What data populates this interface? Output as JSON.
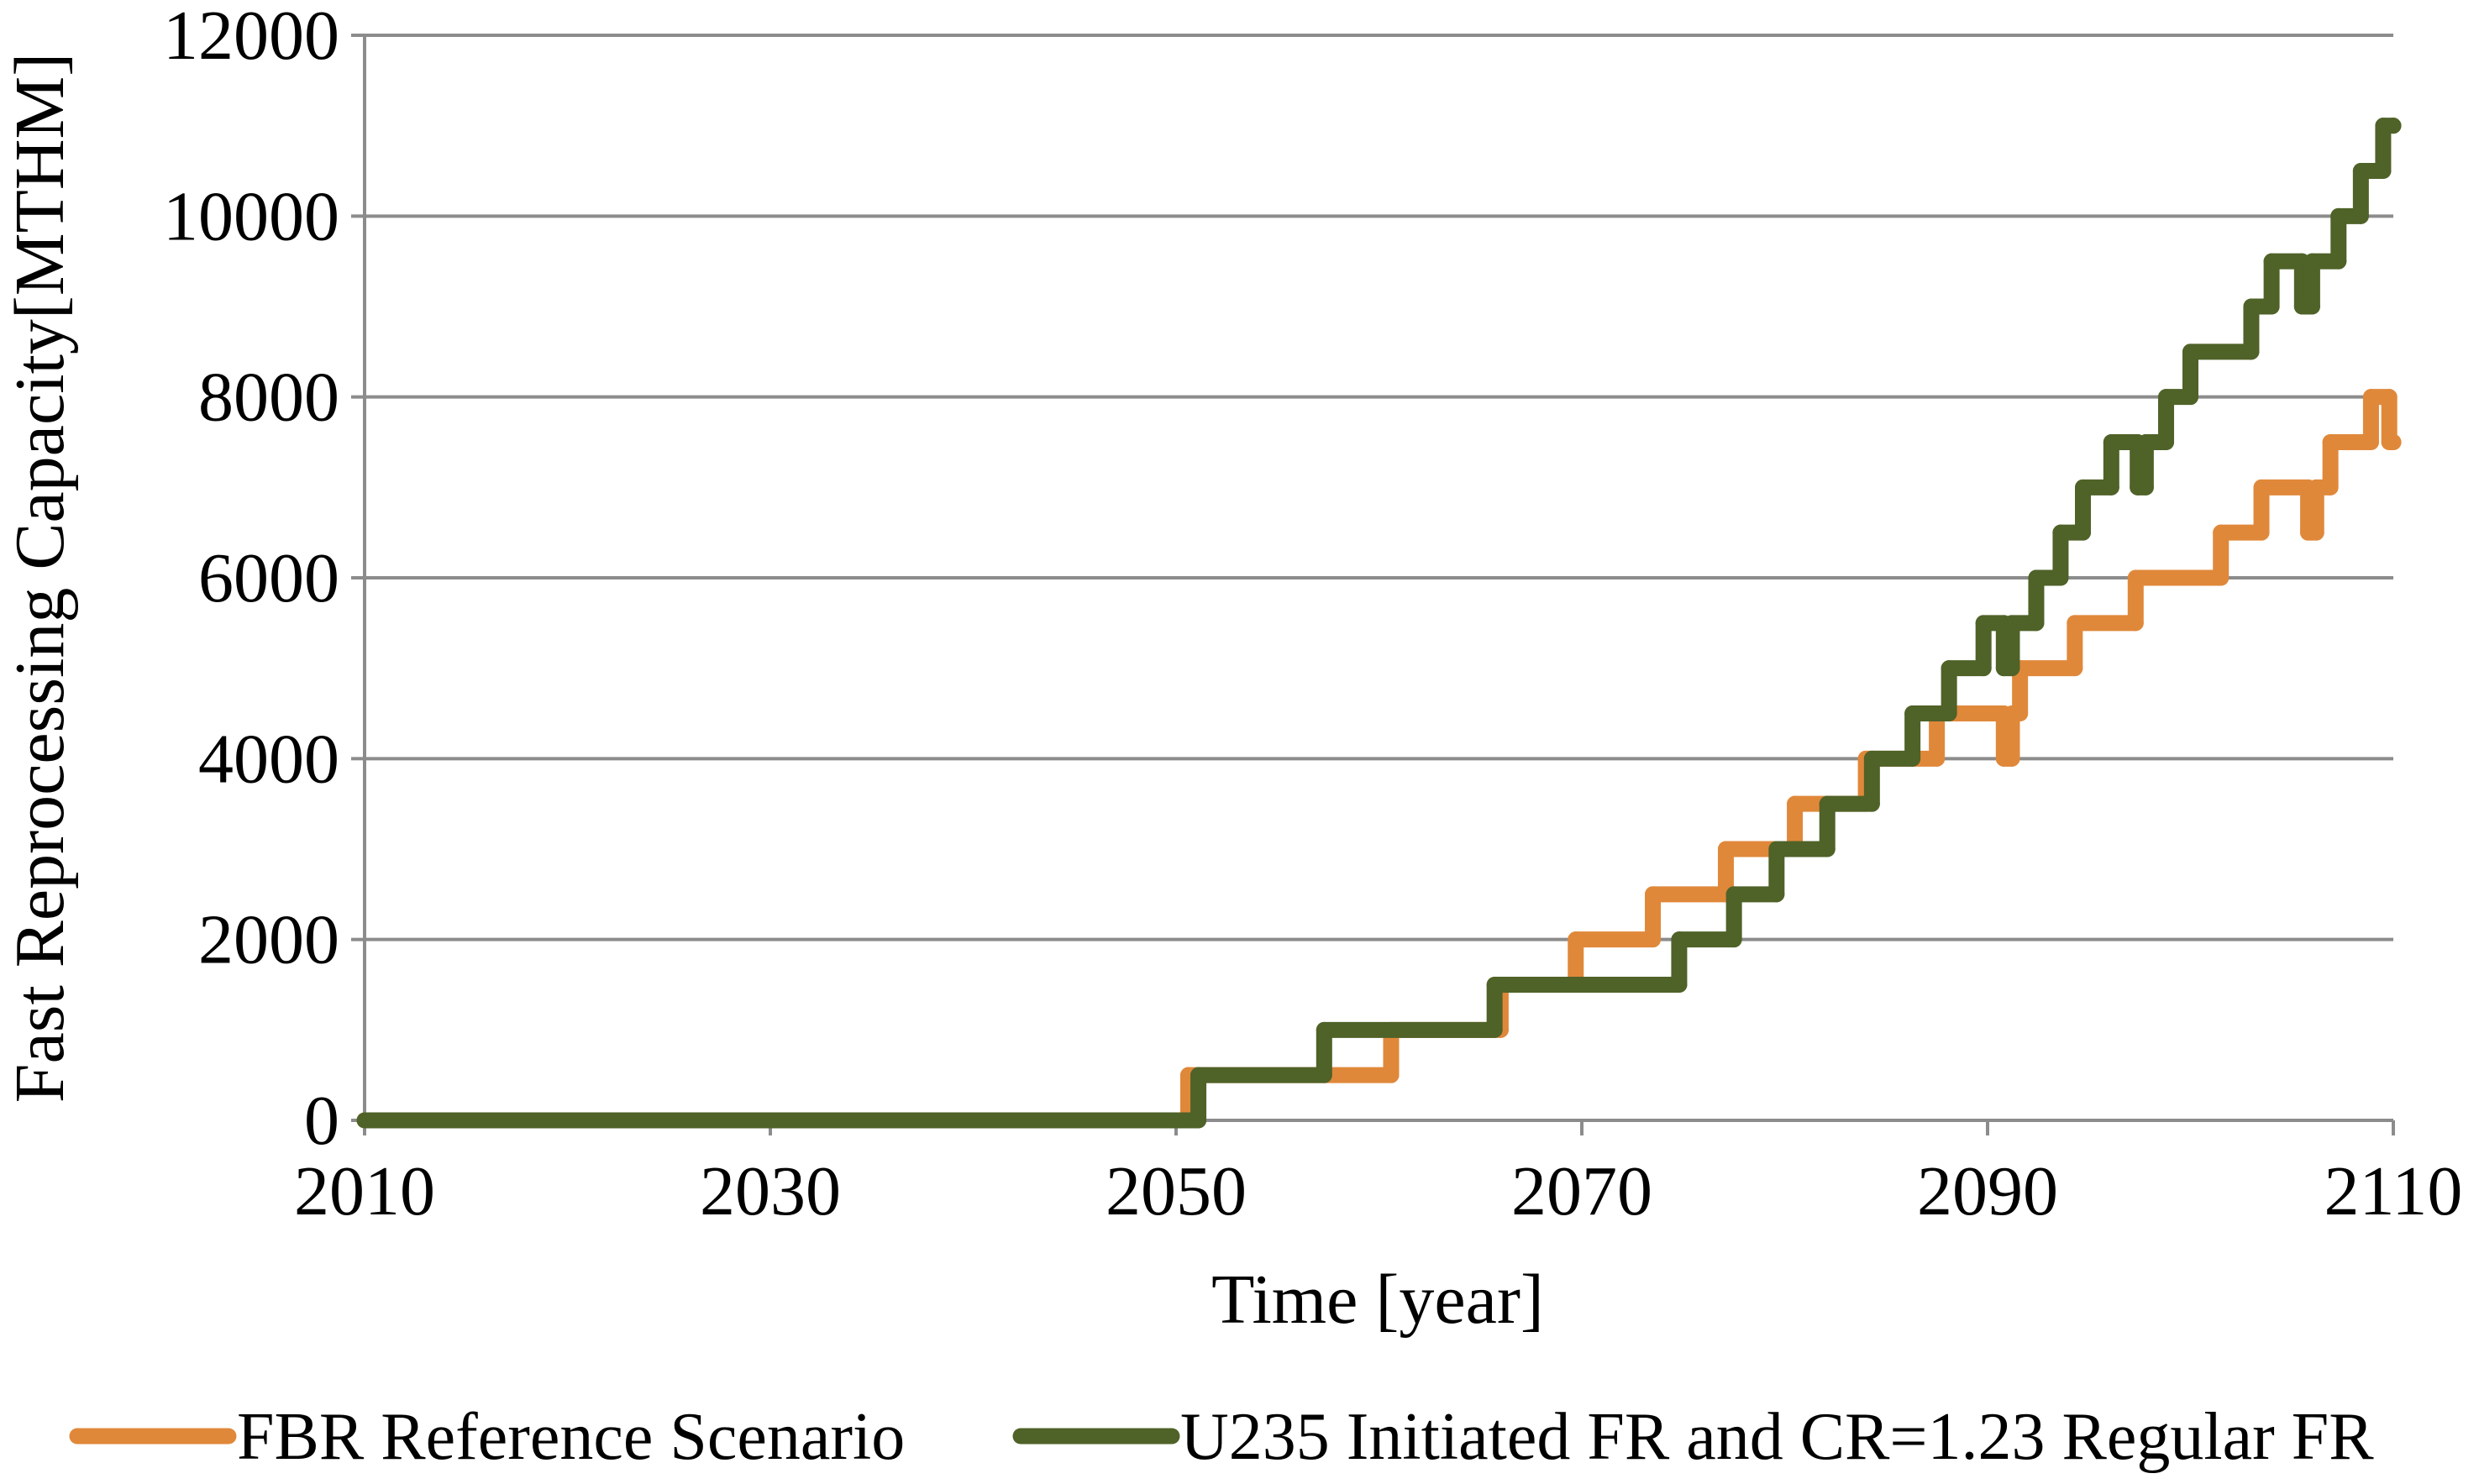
{
  "chart_data": {
    "type": "line",
    "step": "post",
    "x_label": "Time [year]",
    "y_label": "Fast Reprocessing Capacity[MTHM]",
    "xlim": [
      2010,
      2110
    ],
    "xticks": [
      2010,
      2030,
      2050,
      2070,
      2090,
      2110
    ],
    "ylim": [
      0,
      12000
    ],
    "yticks": [
      0,
      2000,
      4000,
      6000,
      8000,
      10000,
      12000
    ],
    "grid": true,
    "legend": "bottom",
    "series": [
      {
        "name": "FBR Reference Scenario",
        "color": "#e0883a",
        "x": [
          2010,
          2050.6,
          2060.6,
          2066,
          2069.7,
          2073.5,
          2077.1,
          2080.5,
          2084,
          2087.5,
          2090.8,
          2091.2,
          2091.6,
          2094.3,
          2097.3,
          2101.5,
          2103.5,
          2105.8,
          2106.2,
          2106.9,
          2108.9,
          2109.8,
          2110
        ],
        "values": [
          0,
          500,
          1000,
          1500,
          2000,
          2500,
          3000,
          3500,
          4000,
          4500,
          4000,
          4500,
          5000,
          5500,
          6000,
          6500,
          7000,
          6500,
          7000,
          7500,
          8000,
          7500,
          7500
        ]
      },
      {
        "name": "U235 Initiated FR and CR=1.23 Regular FR",
        "color": "#4f6228",
        "x": [
          2010,
          2051.1,
          2057.3,
          2065.7,
          2074.8,
          2077.5,
          2079.6,
          2082.1,
          2084.3,
          2086.3,
          2088.1,
          2089.8,
          2090.8,
          2091.2,
          2092.4,
          2093.6,
          2094.7,
          2096.1,
          2097.4,
          2097.8,
          2098.8,
          2100,
          2103,
          2104,
          2105.5,
          2106,
          2107.3,
          2108.4,
          2109.5,
          2110
        ],
        "values": [
          0,
          500,
          1000,
          1500,
          2000,
          2500,
          3000,
          3500,
          4000,
          4500,
          5000,
          5500,
          5000,
          5500,
          6000,
          6500,
          7000,
          7500,
          7000,
          7500,
          8000,
          8500,
          9000,
          9500,
          9000,
          9500,
          10000,
          10500,
          11000,
          11000
        ]
      }
    ]
  }
}
